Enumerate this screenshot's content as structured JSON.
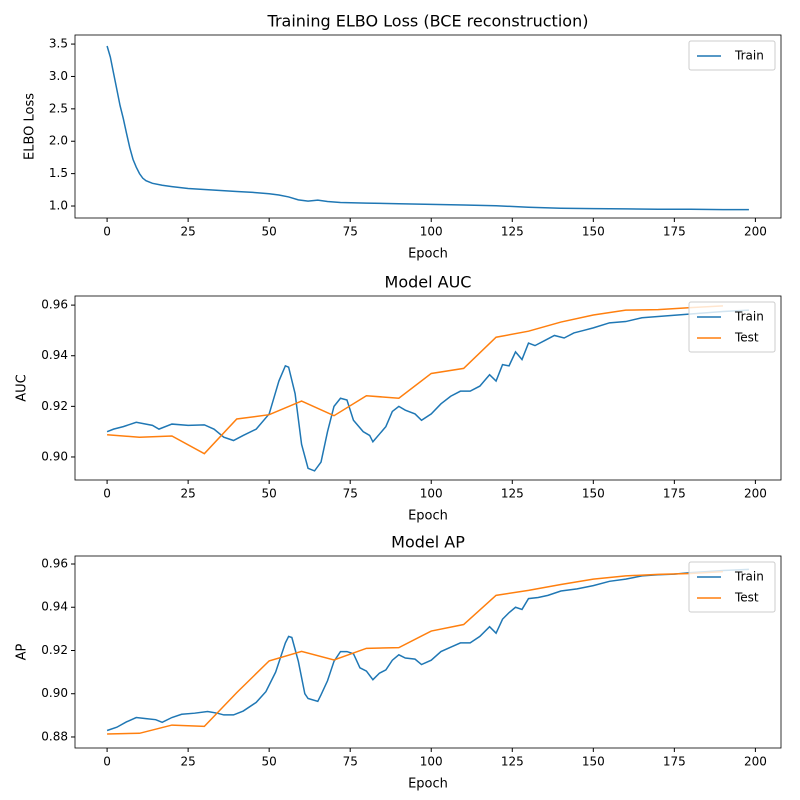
{
  "chart_data": [
    {
      "type": "line",
      "title": "Training ELBO Loss (BCE reconstruction)",
      "x_label": "Epoch",
      "y_label": "ELBO Loss",
      "xlim": [
        -9.9,
        207.9
      ],
      "xticks": [
        0,
        25,
        50,
        75,
        100,
        125,
        150,
        175,
        200
      ],
      "ylim": [
        0.815,
        3.64
      ],
      "yticks": [
        {
          "value": 1.0,
          "label": "1.0"
        },
        1.5,
        {
          "value": 2.0,
          "label": "2.0"
        },
        2.5,
        {
          "value": 3.0,
          "label": "3.0"
        },
        3.5
      ],
      "legend": "upper right",
      "series": [
        {
          "name": "Train",
          "color": "#1f77b4",
          "x": [
            0,
            1,
            2,
            3,
            4,
            5,
            6,
            7,
            8,
            9,
            10,
            11,
            12,
            14,
            17,
            20,
            25,
            30,
            35,
            40,
            45,
            50,
            53,
            56,
            59,
            62,
            65,
            68,
            72,
            80,
            90,
            100,
            110,
            120,
            130,
            140,
            150,
            160,
            170,
            180,
            190,
            198
          ],
          "values": [
            3.47,
            3.3,
            3.05,
            2.8,
            2.55,
            2.35,
            2.12,
            1.9,
            1.72,
            1.6,
            1.5,
            1.43,
            1.39,
            1.35,
            1.32,
            1.3,
            1.27,
            1.255,
            1.24,
            1.225,
            1.21,
            1.19,
            1.17,
            1.14,
            1.095,
            1.075,
            1.09,
            1.07,
            1.055,
            1.045,
            1.035,
            1.025,
            1.015,
            1.005,
            0.98,
            0.965,
            0.96,
            0.955,
            0.95,
            0.95,
            0.945,
            0.945
          ]
        }
      ]
    },
    {
      "type": "line",
      "title": "Model AUC",
      "x_label": "Epoch",
      "y_label": "AUC",
      "xlim": [
        -9.9,
        207.9
      ],
      "xticks": [
        0,
        25,
        50,
        75,
        100,
        125,
        150,
        175,
        200
      ],
      "ylim": [
        0.8909,
        0.9636
      ],
      "yticks": [
        {
          "value": 0.9,
          "label": "0.90"
        },
        0.92,
        0.94,
        0.96
      ],
      "legend": "upper right",
      "series": [
        {
          "name": "Train",
          "color": "#1f77b4",
          "x": [
            0,
            2,
            5,
            9,
            14,
            16,
            20,
            25,
            30,
            33,
            36,
            39,
            42,
            46,
            50,
            53,
            55,
            56,
            58,
            60,
            62,
            64,
            66,
            68,
            70,
            72,
            74,
            76,
            79,
            81,
            82,
            84,
            86,
            88,
            90,
            92,
            95,
            97,
            100,
            103,
            106,
            109,
            112,
            115,
            118,
            120,
            122,
            124,
            126,
            128,
            130,
            132,
            135,
            138,
            141,
            144,
            147,
            150,
            155,
            160,
            165,
            170,
            175,
            180,
            185,
            190,
            198
          ],
          "values": [
            0.91,
            0.911,
            0.912,
            0.9137,
            0.9125,
            0.911,
            0.913,
            0.9125,
            0.9127,
            0.911,
            0.9078,
            0.9065,
            0.9085,
            0.911,
            0.917,
            0.93,
            0.936,
            0.9355,
            0.925,
            0.905,
            0.8955,
            0.8945,
            0.898,
            0.91,
            0.92,
            0.9232,
            0.9225,
            0.9145,
            0.91,
            0.9085,
            0.906,
            0.909,
            0.912,
            0.918,
            0.92,
            0.9185,
            0.917,
            0.9145,
            0.917,
            0.921,
            0.924,
            0.926,
            0.926,
            0.928,
            0.9325,
            0.93,
            0.9365,
            0.936,
            0.9415,
            0.9385,
            0.945,
            0.944,
            0.946,
            0.948,
            0.947,
            0.949,
            0.95,
            0.951,
            0.953,
            0.9535,
            0.955,
            0.9555,
            0.956,
            0.9565,
            0.957,
            0.9575,
            0.958
          ]
        },
        {
          "name": "Test",
          "color": "#ff7f0e",
          "x": [
            0,
            10,
            20,
            30,
            40,
            50,
            60,
            70,
            80,
            90,
            100,
            110,
            120,
            130,
            140,
            150,
            160,
            170,
            180,
            190
          ],
          "values": [
            0.9088,
            0.9078,
            0.9083,
            0.9013,
            0.915,
            0.9167,
            0.9221,
            0.9163,
            0.9242,
            0.9232,
            0.933,
            0.935,
            0.9473,
            0.9497,
            0.9533,
            0.9561,
            0.958,
            0.9582,
            0.959,
            0.9597
          ]
        }
      ]
    },
    {
      "type": "line",
      "title": "Model AP",
      "x_label": "Epoch",
      "y_label": "AP",
      "xlim": [
        -9.9,
        207.9
      ],
      "xticks": [
        0,
        25,
        50,
        75,
        100,
        125,
        150,
        175,
        200
      ],
      "ylim": [
        0.8749,
        0.9637
      ],
      "yticks": [
        0.88,
        {
          "value": 0.9,
          "label": "0.90"
        },
        0.92,
        0.94,
        0.96
      ],
      "legend": "upper right",
      "series": [
        {
          "name": "Train",
          "color": "#1f77b4",
          "x": [
            0,
            3,
            6,
            9,
            12,
            15,
            17,
            20,
            23,
            27,
            31,
            34,
            36,
            39,
            42,
            46,
            49,
            52,
            55,
            56,
            57,
            59,
            61,
            62,
            65,
            66,
            68,
            70,
            72,
            74,
            76,
            78,
            80,
            82,
            84,
            86,
            88,
            90,
            92,
            95,
            97,
            100,
            103,
            106,
            109,
            112,
            115,
            118,
            120,
            122,
            124,
            126,
            128,
            130,
            133,
            136,
            140,
            145,
            150,
            155,
            160,
            165,
            170,
            175,
            180,
            185,
            190,
            198
          ],
          "values": [
            0.883,
            0.8845,
            0.887,
            0.889,
            0.8885,
            0.888,
            0.8868,
            0.889,
            0.8905,
            0.891,
            0.8918,
            0.891,
            0.8902,
            0.8902,
            0.892,
            0.896,
            0.901,
            0.91,
            0.9235,
            0.9265,
            0.926,
            0.915,
            0.9,
            0.8978,
            0.8965,
            0.8995,
            0.906,
            0.915,
            0.9195,
            0.9195,
            0.9185,
            0.912,
            0.9105,
            0.9065,
            0.9095,
            0.911,
            0.9155,
            0.918,
            0.9165,
            0.916,
            0.9135,
            0.9155,
            0.9195,
            0.9215,
            0.9235,
            0.9235,
            0.9265,
            0.931,
            0.928,
            0.9345,
            0.9375,
            0.94,
            0.939,
            0.944,
            0.9445,
            0.9455,
            0.9475,
            0.9485,
            0.95,
            0.952,
            0.953,
            0.9545,
            0.955,
            0.9553,
            0.956,
            0.9565,
            0.957,
            0.9575
          ]
        },
        {
          "name": "Test",
          "color": "#ff7f0e",
          "x": [
            0,
            10,
            20,
            30,
            40,
            50,
            60,
            70,
            80,
            90,
            100,
            110,
            120,
            130,
            140,
            150,
            160,
            170,
            180,
            190
          ],
          "values": [
            0.8814,
            0.8817,
            0.8855,
            0.8849,
            0.9005,
            0.9152,
            0.9196,
            0.9156,
            0.921,
            0.9213,
            0.929,
            0.932,
            0.9455,
            0.9478,
            0.9505,
            0.953,
            0.9545,
            0.9552,
            0.9556,
            0.9565
          ]
        }
      ]
    }
  ]
}
